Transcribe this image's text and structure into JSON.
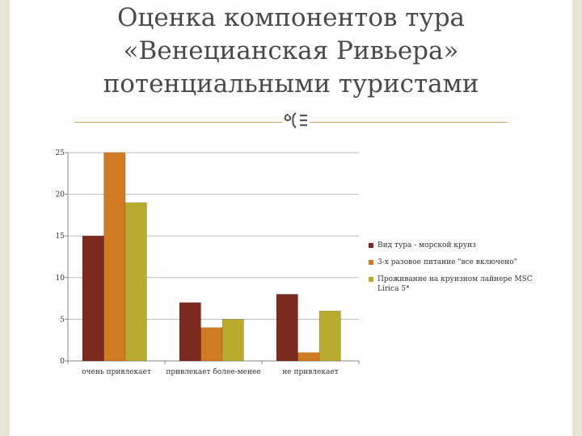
{
  "title_lines": [
    "Оценка компонентов тура",
    "«Венецианская Ривьера»",
    "потенциальными туристами"
  ],
  "colors": {
    "series1": "#7b2a1d",
    "series2": "#d07a22",
    "series3": "#b8ab2e",
    "rule": "#c9a46a",
    "grid": "#bdbdbd"
  },
  "chart_data": {
    "type": "bar",
    "categories": [
      "очень привлекает",
      "привлекает более-менее",
      "не привлекает"
    ],
    "series": [
      {
        "name": "Вид тура - морской круиз",
        "values": [
          15,
          7,
          8
        ]
      },
      {
        "name": "3-х разовое питание \"все включено\"",
        "values": [
          25,
          4,
          1
        ]
      },
      {
        "name": "Проживание на круизном лайнере MSC Lirica 5*",
        "values": [
          19,
          5,
          6
        ]
      }
    ],
    "ylim": [
      0,
      25
    ],
    "yticks": [
      "0",
      "5",
      "10",
      "15",
      "20",
      "25"
    ],
    "grid": true,
    "legend": "right"
  }
}
